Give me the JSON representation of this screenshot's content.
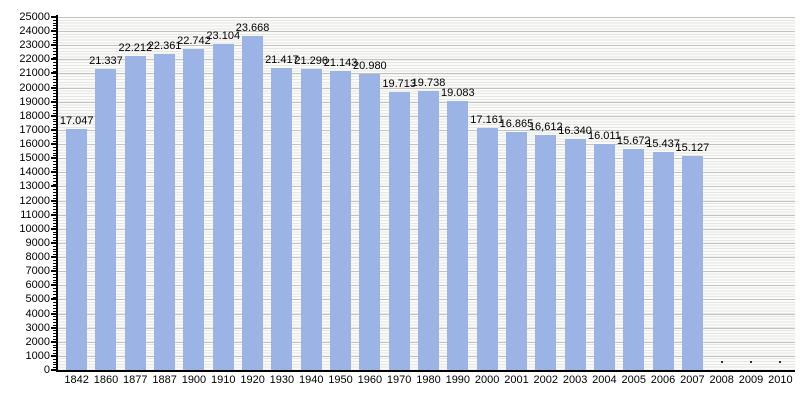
{
  "chart_data": {
    "type": "bar",
    "title": "",
    "xlabel": "",
    "ylabel": "",
    "categories": [
      "1842",
      "1860",
      "1877",
      "1887",
      "1900",
      "1910",
      "1920",
      "1930",
      "1940",
      "1950",
      "1960",
      "1970",
      "1980",
      "1990",
      "2000",
      "2001",
      "2002",
      "2003",
      "2004",
      "2005",
      "2006",
      "2007",
      "2008",
      "2009",
      "2010"
    ],
    "values": [
      17047,
      21337,
      22212,
      22361,
      22742,
      23104,
      23668,
      21417,
      21296,
      21143,
      20980,
      19713,
      19738,
      19083,
      17161,
      16865,
      16612,
      16340,
      16011,
      15672,
      15437,
      15127,
      null,
      null,
      null
    ],
    "bar_labels": [
      "17.047",
      "21.337",
      "22.212",
      "22.361",
      "22.742",
      "23.104",
      "23.668",
      "21.417",
      "21.296",
      "21.143",
      "20.980",
      "19.713",
      "19.738",
      "19.083",
      "17.161",
      "16.865",
      "16,612",
      "16.340",
      "16.011",
      "15.672",
      "15.437",
      "15.127",
      ".",
      ".",
      "."
    ],
    "ylim": [
      0,
      25000
    ],
    "y_tick_step": 1000,
    "y_minor_tick_step": 200,
    "y_tick_labels": [
      "0",
      "1000",
      "2000",
      "3000",
      "4000",
      "5000",
      "6000",
      "7000",
      "8000",
      "9000",
      "10000",
      "11000",
      "12000",
      "13000",
      "14000",
      "15000",
      "16000",
      "17000",
      "18000",
      "19000",
      "20000",
      "21000",
      "22000",
      "23000",
      "24000",
      "25000"
    ],
    "grid": "horizontal-minor-and-major",
    "legend": "none",
    "colors": {
      "bar": "#9BB3E5",
      "axis": "#000000",
      "label_text": "#000000",
      "grid_major": "#c2c2bf",
      "grid_minor": "#e6e6e3",
      "plot_background": "#fbfbfa",
      "missing_marker": "#333333"
    }
  }
}
